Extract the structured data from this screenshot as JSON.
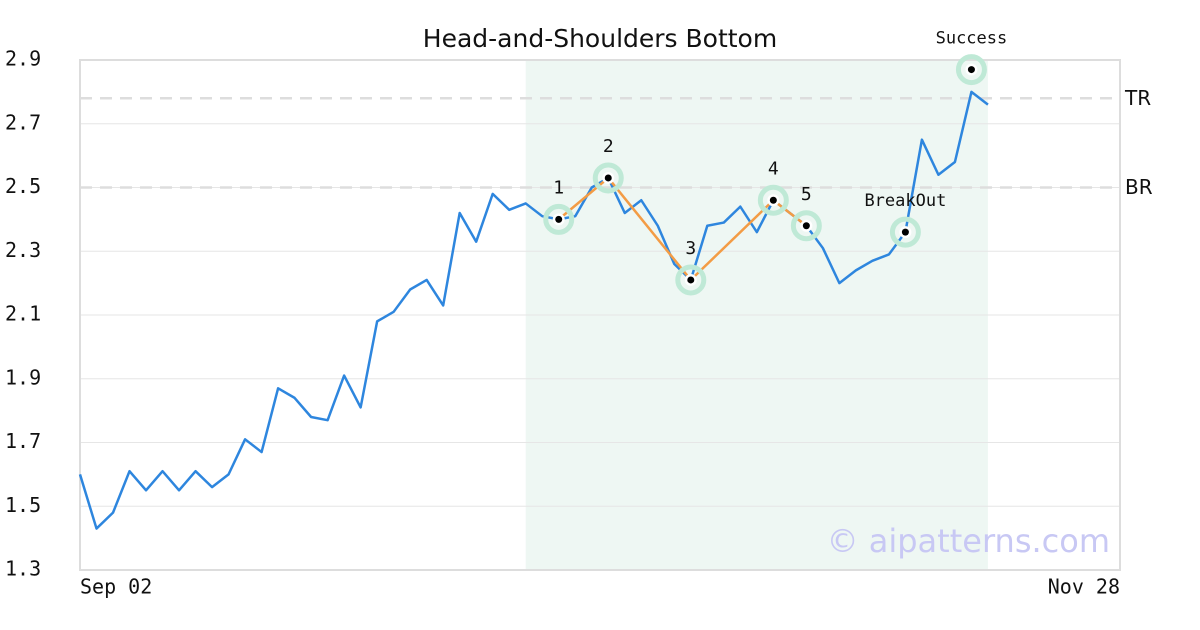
{
  "chart_data": {
    "type": "line",
    "title": "Head-and-Shoulders Bottom",
    "categories": [
      "Sep 02",
      null,
      null,
      null,
      null,
      null,
      null,
      null,
      null,
      null,
      null,
      null,
      null,
      null,
      null,
      null,
      null,
      null,
      null,
      null,
      null,
      null,
      null,
      null,
      null,
      null,
      null,
      null,
      null,
      null,
      null,
      null,
      null,
      null,
      null,
      null,
      null,
      null,
      null,
      null,
      null,
      null,
      null,
      null,
      null,
      null,
      null,
      null,
      null,
      null,
      null,
      null,
      null,
      null,
      null,
      null,
      null,
      null,
      null,
      null,
      null,
      null,
      null,
      "Nov 28"
    ],
    "values": [
      1.6,
      1.43,
      1.48,
      1.61,
      1.55,
      1.61,
      1.55,
      1.61,
      1.56,
      1.6,
      1.71,
      1.67,
      1.87,
      1.84,
      1.78,
      1.77,
      1.91,
      1.81,
      2.08,
      2.11,
      2.18,
      2.21,
      2.13,
      2.42,
      2.33,
      2.48,
      2.43,
      2.45,
      2.41,
      2.4,
      2.41,
      2.5,
      2.53,
      2.42,
      2.46,
      2.38,
      2.26,
      2.21,
      2.38,
      2.39,
      2.44,
      2.36,
      2.46,
      2.42,
      2.38,
      2.31,
      2.2,
      2.24,
      2.27,
      2.29,
      2.36,
      2.65,
      2.54,
      2.58,
      2.8,
      2.76,
      null,
      null,
      null,
      null,
      null,
      null,
      null,
      null
    ],
    "color": "#2e86de",
    "ylim": [
      1.3,
      2.9
    ],
    "yticks": [
      1.3,
      1.5,
      1.7,
      1.9,
      2.1,
      2.3,
      2.5,
      2.7,
      2.9
    ],
    "grid": true,
    "highlight": {
      "from": 27,
      "to": 55,
      "color": "#eef7f3"
    },
    "pattern_color": "#f39c45",
    "point_color": "#bfe9d6",
    "pattern_points": [
      {
        "label": "1",
        "x": 29,
        "value": 2.4
      },
      {
        "label": "2",
        "x": 32,
        "value": 2.53
      },
      {
        "label": "3",
        "x": 37,
        "value": 2.21
      },
      {
        "label": "4",
        "x": 42,
        "value": 2.46
      },
      {
        "label": "5",
        "x": 44,
        "value": 2.38
      }
    ],
    "signal_points": [
      {
        "label": "BreakOut",
        "x": 50,
        "value": 2.36
      },
      {
        "label": "Success",
        "x": 54,
        "value": 2.87
      }
    ],
    "levels": [
      {
        "label": "TR",
        "value": 2.78
      },
      {
        "label": "BR",
        "value": 2.5
      }
    ],
    "watermark": "© aipatterns.com"
  }
}
